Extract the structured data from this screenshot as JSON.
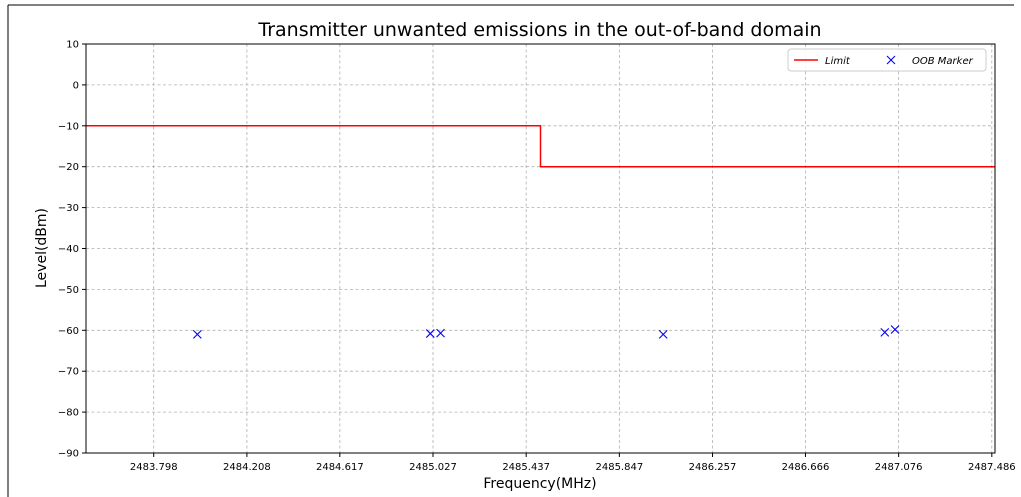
{
  "chart_data": {
    "type": "line",
    "title": "Transmitter unwanted emissions in the out-of-band domain",
    "xlabel": "Frequency(MHz)",
    "ylabel": "Level(dBm)",
    "xlim": [
      2483.5,
      2487.5
    ],
    "ylim": [
      -90,
      10
    ],
    "xticks": [
      2483.798,
      2484.208,
      2484.617,
      2485.027,
      2485.437,
      2485.847,
      2486.257,
      2486.666,
      2487.076,
      2487.486
    ],
    "yticks": [
      10,
      0,
      -10,
      -20,
      -30,
      -40,
      -50,
      -60,
      -70,
      -80,
      -90
    ],
    "grid": true,
    "legend_position": "top-right",
    "series": [
      {
        "name": "Limit",
        "kind": "line",
        "color": "#ff0000",
        "x": [
          2483.5,
          2485.5,
          2485.5,
          2487.5
        ],
        "y": [
          -10,
          -10,
          -20,
          -20
        ]
      },
      {
        "name": "OOB Marker",
        "kind": "scatter",
        "marker": "x",
        "color": "#0000ff",
        "x": [
          2483.99,
          2485.015,
          2485.06,
          2486.04,
          2487.015,
          2487.06
        ],
        "y": [
          -61,
          -60.8,
          -60.7,
          -61,
          -60.5,
          -59.8
        ]
      }
    ]
  }
}
